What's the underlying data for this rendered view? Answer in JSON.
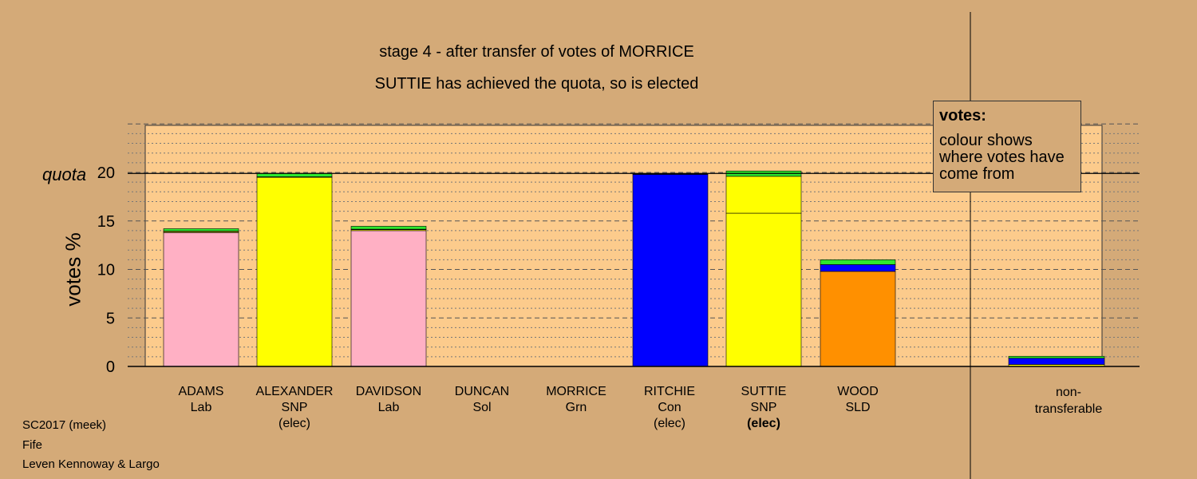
{
  "titles": {
    "line1": "stage 4 - after transfer of votes of MORRICE",
    "line2": "SUTTIE has achieved the quota, so is elected"
  },
  "axis": {
    "ylabel": "votes %",
    "quota_label": "quota",
    "yticks": [
      "0",
      "5",
      "10",
      "15",
      "20"
    ]
  },
  "legend": {
    "heading": "votes:",
    "text": "colour shows where votes have come from"
  },
  "candidates": [
    {
      "name": "ADAMS",
      "party": "Lab",
      "status": ""
    },
    {
      "name": "ALEXANDER",
      "party": "SNP",
      "status": "(elec)"
    },
    {
      "name": "DAVIDSON",
      "party": "Lab",
      "status": ""
    },
    {
      "name": "DUNCAN",
      "party": "Sol",
      "status": ""
    },
    {
      "name": "MORRICE",
      "party": "Grn",
      "status": ""
    },
    {
      "name": "RITCHIE",
      "party": "Con",
      "status": "(elec)"
    },
    {
      "name": "SUTTIE",
      "party": "SNP",
      "status": "(elec)"
    },
    {
      "name": "WOOD",
      "party": "SLD",
      "status": ""
    },
    {
      "name": "non-",
      "party": "transferable",
      "status": ""
    }
  ],
  "footer": {
    "line1": "SC2017 (meek)",
    "line2": "Fife",
    "line3": "Leven Kennoway & Largo"
  },
  "colors": {
    "background": "#d4aa78",
    "plot_area": "#fccb8c",
    "Lab": "#ffb0c4",
    "SNP": "#ffff00",
    "Con": "#0000ff",
    "SLD": "#ff9000",
    "Grn": "#2ee82e",
    "black": "#000000"
  },
  "chart_data": {
    "type": "bar",
    "stacked": true,
    "ylabel": "votes %",
    "ylim": [
      0,
      25
    ],
    "quota": 19.9,
    "grid": true,
    "categories": [
      "ADAMS Lab",
      "ALEXANDER SNP",
      "DAVIDSON Lab",
      "DUNCAN Sol",
      "MORRICE Grn",
      "RITCHIE Con",
      "SUTTIE SNP",
      "WOOD SLD",
      "non-transferable"
    ],
    "bars": [
      [
        {
          "source": "Lab",
          "value": 13.8
        },
        {
          "source": "SNP",
          "value": 0.1
        },
        {
          "source": "Con",
          "value": 0.05
        },
        {
          "source": "Grn",
          "value": 0.25
        }
      ],
      [
        {
          "source": "SNP",
          "value": 19.5
        },
        {
          "source": "Con",
          "value": 0.05
        },
        {
          "source": "Grn",
          "value": 0.35
        }
      ],
      [
        {
          "source": "Lab",
          "value": 14.0
        },
        {
          "source": "SNP",
          "value": 0.1
        },
        {
          "source": "Con",
          "value": 0.05
        },
        {
          "source": "Grn",
          "value": 0.3
        }
      ],
      [],
      [],
      [
        {
          "source": "Con",
          "value": 19.8
        },
        {
          "source": "Grn",
          "value": 0.05
        }
      ],
      [
        {
          "source": "SNP",
          "value": 15.8
        },
        {
          "source": "SNP",
          "value": 3.8
        },
        {
          "source": "Grn",
          "value": 0.55
        }
      ],
      [
        {
          "source": "SLD",
          "value": 9.8
        },
        {
          "source": "Con",
          "value": 0.7
        },
        {
          "source": "Grn",
          "value": 0.5
        }
      ],
      [
        {
          "source": "SNP",
          "value": 0.2
        },
        {
          "source": "Con",
          "value": 0.65
        },
        {
          "source": "Grn",
          "value": 0.2
        }
      ]
    ]
  }
}
